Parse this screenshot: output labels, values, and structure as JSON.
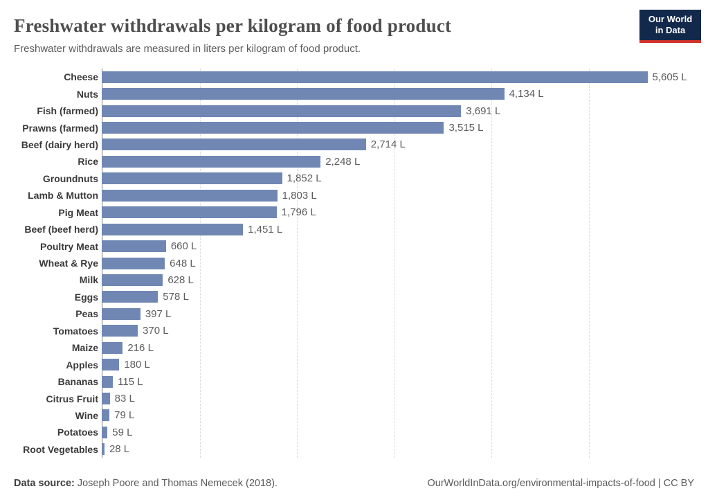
{
  "header": {
    "title": "Freshwater withdrawals per kilogram of food product",
    "subtitle": "Freshwater withdrawals are measured in liters per kilogram of food product."
  },
  "logo": {
    "line1": "Our World",
    "line2": "in Data",
    "bg_color": "#12294b",
    "accent_color": "#d0342c"
  },
  "chart_data": {
    "type": "bar",
    "orientation": "horizontal",
    "title": "Freshwater withdrawals per kilogram of food product",
    "xlabel": "",
    "ylabel": "",
    "unit": "liters per kilogram",
    "xlim": [
      0,
      5605
    ],
    "gridlines": [
      1000,
      2000,
      3000,
      4000,
      5000
    ],
    "grid_style": "dashed",
    "legend": "none",
    "bar_color": "#7087b4",
    "axis_color": "#7a7a7a",
    "gridline_color": "#dcdcdc",
    "categories": [
      "Cheese",
      "Nuts",
      "Fish (farmed)",
      "Prawns (farmed)",
      "Beef (dairy herd)",
      "Rice",
      "Groundnuts",
      "Lamb & Mutton",
      "Pig Meat",
      "Beef (beef herd)",
      "Poultry Meat",
      "Wheat & Rye",
      "Milk",
      "Eggs",
      "Peas",
      "Tomatoes",
      "Maize",
      "Apples",
      "Bananas",
      "Citrus Fruit",
      "Wine",
      "Potatoes",
      "Root Vegetables"
    ],
    "values": [
      5605,
      4134,
      3691,
      3515,
      2714,
      2248,
      1852,
      1803,
      1796,
      1451,
      660,
      648,
      628,
      578,
      397,
      370,
      216,
      180,
      115,
      83,
      79,
      59,
      28
    ],
    "value_labels": [
      "5,605 L",
      "4,134 L",
      "3,691 L",
      "3,515 L",
      "2,714 L",
      "2,248 L",
      "1,852 L",
      "1,803 L",
      "1,796 L",
      "1,451 L",
      "660 L",
      "648 L",
      "628 L",
      "578 L",
      "397 L",
      "370 L",
      "216 L",
      "180 L",
      "115 L",
      "83 L",
      "79 L",
      "59 L",
      "28 L"
    ]
  },
  "footer": {
    "source_label": "Data source:",
    "source_text": " Joseph Poore and Thomas Nemecek (2018).",
    "credit": "OurWorldInData.org/environmental-impacts-of-food | CC BY"
  }
}
